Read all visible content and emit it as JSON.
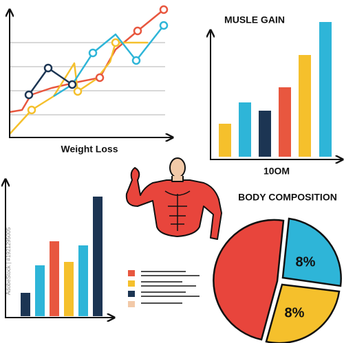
{
  "weight_loss": {
    "title": "Weight Loss"
  },
  "muscle_gain": {
    "title": "MUSLE GAIN",
    "caption": "10OM"
  },
  "body_composition": {
    "title": "BODY COMPOSITION",
    "labels": [
      "8%",
      "8%"
    ]
  },
  "watermark": "AdobeStock | #1921295005"
}
